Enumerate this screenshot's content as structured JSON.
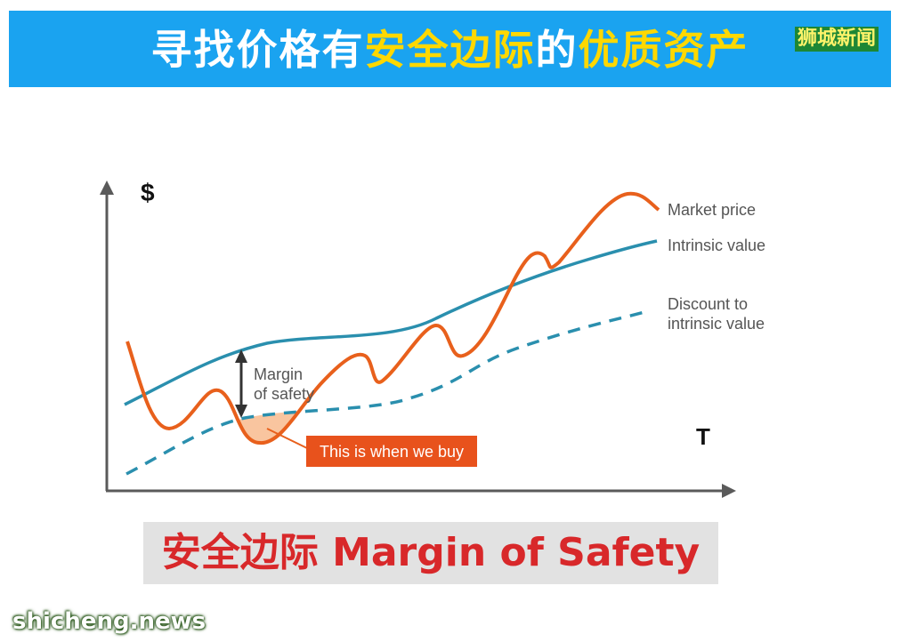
{
  "banner": {
    "title_part1": "寻找价格有",
    "title_part2": "安全边际",
    "title_part3": "的",
    "title_part4": "优质资产",
    "watermark": "狮城新闻"
  },
  "chart_data": {
    "type": "line",
    "ylabel": "$",
    "xlabel": "T",
    "series": [
      {
        "name": "Market price",
        "color": "#e8601c",
        "style": "solid"
      },
      {
        "name": "Intrinsic value",
        "color": "#2a8fae",
        "style": "solid"
      },
      {
        "name": "Discount to intrinsic value",
        "color": "#2a8fae",
        "style": "dashed"
      }
    ],
    "annotations": {
      "margin_label": [
        "Margin",
        "of safety"
      ],
      "buy_label": "This is when we buy"
    },
    "grid": false
  },
  "caption": {
    "text": "安全边际 Margin of Safety"
  },
  "footer": {
    "site": "shicheng.news"
  }
}
